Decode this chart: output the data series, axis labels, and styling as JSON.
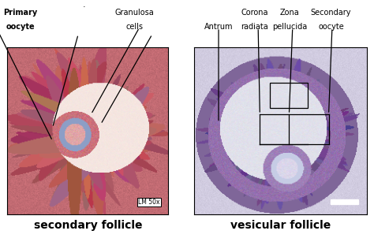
{
  "title_left": "secondary follicle",
  "title_right": "vesicular follicle",
  "label_left_1_line1": "Primary",
  "label_left_1_line2": "oocyte",
  "label_left_2_line1": "Granulosa",
  "label_left_2_line2": "cells",
  "label_right_antrum": "Antrum",
  "label_right_corona_1": "Corona",
  "label_right_corona_2": "radiata",
  "label_right_zona_1": "Zona",
  "label_right_zona_2": "pellucida",
  "label_right_sec_1": "Secondary",
  "label_right_sec_2": "oocyte",
  "lm_text": "LM 50x",
  "bg_color": "#ffffff",
  "title_fontsize": 10,
  "label_fontsize": 7,
  "fig_width": 4.74,
  "fig_height": 3.02
}
